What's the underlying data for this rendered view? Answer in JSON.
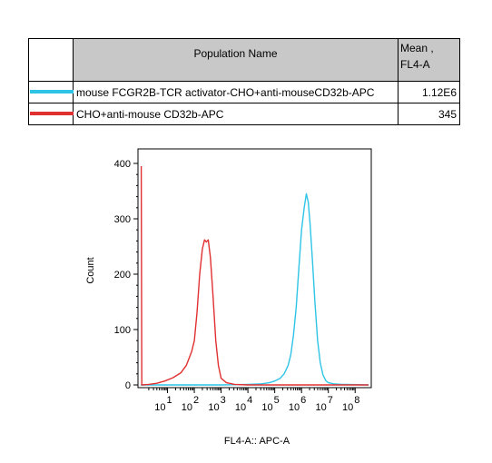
{
  "legend": {
    "header_name": "Population Name",
    "header_mean_line1": "Mean ,",
    "header_mean_line2": "FL4-A",
    "rows": [
      {
        "name": "mouse FCGR2B-TCR activator-CHO+anti-mouseCD32b-APC",
        "mean": "1.12E6",
        "color": "#2ec4e6"
      },
      {
        "name": "CHO+anti-mouse CD32b-APC",
        "mean": "345",
        "color": "#e03030"
      }
    ]
  },
  "chart_data": {
    "type": "line",
    "title": "",
    "xlabel": "FL4-A:: APC-A",
    "ylabel": "Count",
    "xscale": "log",
    "xlim": [
      0,
      8.5
    ],
    "ylim": [
      0,
      410
    ],
    "y_ticks": [
      0,
      100,
      200,
      300,
      400
    ],
    "x_ticks": [
      {
        "base": "10",
        "exp": "1",
        "value": 1
      },
      {
        "base": "10",
        "exp": "2",
        "value": 2
      },
      {
        "base": "10",
        "exp": "3",
        "value": 3
      },
      {
        "base": "10",
        "exp": "4",
        "value": 4
      },
      {
        "base": "10",
        "exp": "5",
        "value": 5
      },
      {
        "base": "10",
        "exp": "6",
        "value": 6
      },
      {
        "base": "10",
        "exp": "7",
        "value": 7
      },
      {
        "base": "10",
        "exp": "8",
        "value": 8
      }
    ],
    "series": [
      {
        "name": "mouse FCGR2B-TCR activator-CHO+anti-mouseCD32b-APC",
        "color": "#2ec4e6",
        "points": [
          [
            0,
            0
          ],
          [
            3.0,
            0
          ],
          [
            4.0,
            1
          ],
          [
            4.5,
            2
          ],
          [
            4.8,
            4
          ],
          [
            5.0,
            7
          ],
          [
            5.2,
            12
          ],
          [
            5.35,
            20
          ],
          [
            5.5,
            35
          ],
          [
            5.6,
            55
          ],
          [
            5.7,
            90
          ],
          [
            5.8,
            140
          ],
          [
            5.9,
            210
          ],
          [
            6.0,
            280
          ],
          [
            6.1,
            320
          ],
          [
            6.18,
            345
          ],
          [
            6.25,
            330
          ],
          [
            6.32,
            290
          ],
          [
            6.4,
            230
          ],
          [
            6.5,
            150
          ],
          [
            6.6,
            80
          ],
          [
            6.7,
            40
          ],
          [
            6.8,
            18
          ],
          [
            6.9,
            8
          ],
          [
            7.0,
            4
          ],
          [
            7.2,
            2
          ],
          [
            7.5,
            1
          ],
          [
            8.5,
            0
          ]
        ]
      },
      {
        "name": "CHO+anti-mouse CD32b-APC",
        "color": "#e03030",
        "points": [
          [
            0.02,
            395
          ],
          [
            0.04,
            0
          ],
          [
            0.3,
            1
          ],
          [
            0.6,
            3
          ],
          [
            0.9,
            7
          ],
          [
            1.2,
            13
          ],
          [
            1.5,
            22
          ],
          [
            1.7,
            35
          ],
          [
            1.9,
            60
          ],
          [
            2.0,
            80
          ],
          [
            2.1,
            130
          ],
          [
            2.2,
            200
          ],
          [
            2.3,
            245
          ],
          [
            2.38,
            262
          ],
          [
            2.45,
            258
          ],
          [
            2.52,
            262
          ],
          [
            2.6,
            230
          ],
          [
            2.7,
            160
          ],
          [
            2.8,
            80
          ],
          [
            2.9,
            35
          ],
          [
            3.0,
            12
          ],
          [
            3.2,
            4
          ],
          [
            3.5,
            1
          ],
          [
            4.0,
            0
          ],
          [
            6.0,
            0
          ],
          [
            8.5,
            0
          ]
        ]
      }
    ]
  }
}
